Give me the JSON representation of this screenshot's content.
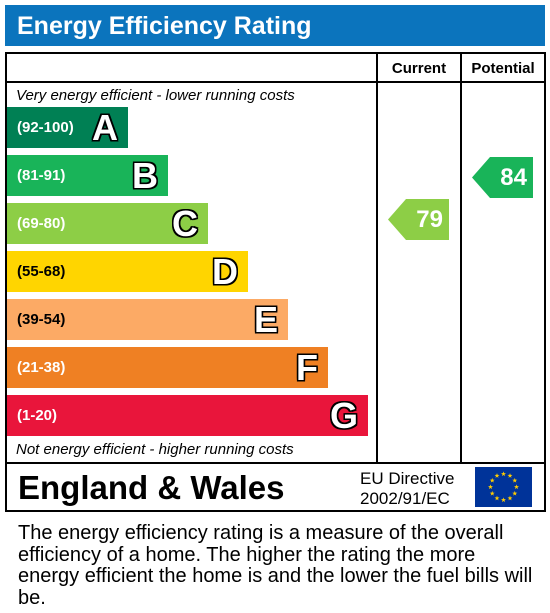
{
  "header": {
    "title": "Energy Efficiency Rating"
  },
  "columns": {
    "current_label": "Current",
    "potential_label": "Potential"
  },
  "notes": {
    "top": "Very energy efficient - lower running costs",
    "bottom": "Not energy efficient - higher running costs"
  },
  "chart_data": {
    "type": "bar",
    "title": "Energy Efficiency Rating",
    "bands": [
      {
        "letter": "A",
        "range": "(92-100)",
        "min": 92,
        "max": 100,
        "color": "#008054"
      },
      {
        "letter": "B",
        "range": "(81-91)",
        "min": 81,
        "max": 91,
        "color": "#19b459"
      },
      {
        "letter": "C",
        "range": "(69-80)",
        "min": 69,
        "max": 80,
        "color": "#8dce46"
      },
      {
        "letter": "D",
        "range": "(55-68)",
        "min": 55,
        "max": 68,
        "color": "#ffd500"
      },
      {
        "letter": "E",
        "range": "(39-54)",
        "min": 39,
        "max": 54,
        "color": "#fcaa65"
      },
      {
        "letter": "F",
        "range": "(21-38)",
        "min": 21,
        "max": 38,
        "color": "#ef8023"
      },
      {
        "letter": "G",
        "range": "(1-20)",
        "min": 1,
        "max": 20,
        "color": "#e9153b"
      }
    ],
    "ratings": {
      "current": {
        "label": "Current",
        "value": 79,
        "band": "C",
        "color": "#8dce46"
      },
      "potential": {
        "label": "Potential",
        "value": 84,
        "band": "B",
        "color": "#19b459"
      }
    }
  },
  "footer": {
    "region": "England & Wales",
    "directive_line1": "EU Directive",
    "directive_line2": "2002/91/EC",
    "flag_icon": "eu-flag-icon",
    "flag_color": "#003399",
    "star_color": "#ffcc00"
  },
  "description": "The energy efficiency rating is a measure of the overall efficiency of a home. The higher the rating the more energy efficient the home is and the lower the fuel bills will be."
}
